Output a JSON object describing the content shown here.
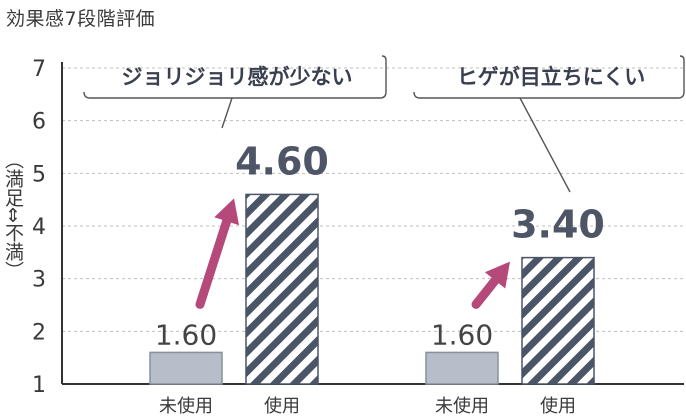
{
  "chart_data": {
    "type": "bar",
    "title": "効果感7段階評価",
    "ylabel": "（満足⇔不満）",
    "ylim": [
      1,
      7
    ],
    "yticks": [
      "1",
      "2",
      "3",
      "4",
      "5",
      "6",
      "7"
    ],
    "groups": [
      {
        "callout": "ジョリジョリ感が少ない",
        "bars": [
          {
            "category": "未使用",
            "value": 1.6,
            "label": "1.60",
            "style": "solid"
          },
          {
            "category": "使用",
            "value": 4.6,
            "label": "4.60",
            "style": "hatched"
          }
        ]
      },
      {
        "callout": "ヒゲが目立ちにくい",
        "bars": [
          {
            "category": "未使用",
            "value": 1.6,
            "label": "1.60",
            "style": "solid"
          },
          {
            "category": "使用",
            "value": 3.4,
            "label": "3.40",
            "style": "hatched"
          }
        ]
      }
    ],
    "grid": true,
    "colors": {
      "solid_bar": "#b8bec9",
      "hatch": "#4a5568",
      "arrow": "#b5497a",
      "grid": "#bfbfbf",
      "axis": "#333333"
    }
  }
}
